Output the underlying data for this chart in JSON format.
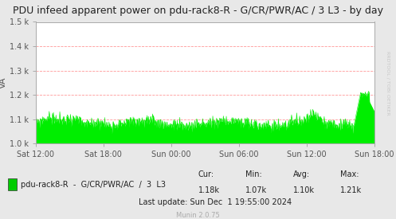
{
  "title": "PDU infeed apparent power on pdu-rack8-R - G/CR/PWR/AC / 3 L3 - by day",
  "ylabel": "VA",
  "ylim": [
    1000,
    1500
  ],
  "ytick_labels": [
    "1.0 k",
    "1.1 k",
    "1.2 k",
    "1.3 k",
    "1.4 k",
    "1.5 k"
  ],
  "ytick_vals": [
    1000,
    1100,
    1200,
    1300,
    1400,
    1500
  ],
  "xtick_labels": [
    "Sat 12:00",
    "Sat 18:00",
    "Sun 00:00",
    "Sun 06:00",
    "Sun 12:00",
    "Sun 18:00"
  ],
  "xtick_pos": [
    0.0,
    0.2,
    0.4,
    0.6,
    0.8,
    1.0
  ],
  "line_color": "#00ee00",
  "fill_color": "#00ee00",
  "background_color": "#e8e8e8",
  "plot_bg_color": "#ffffff",
  "grid_color": "#ff9999",
  "legend_label": "pdu-rack8-R  -  G/CR/PWR/AC  /  3  L3",
  "legend_color": "#00cc00",
  "cur": "1.18k",
  "min": "1.07k",
  "avg": "1.10k",
  "max": "1.21k",
  "last_update": "Last update: Sun Dec  1 19:55:00 2024",
  "munin_version": "Munin 2.0.75",
  "title_fontsize": 9,
  "axis_fontsize": 7,
  "tick_fontsize": 7,
  "legend_fontsize": 7,
  "stats_fontsize": 7,
  "watermark": "RRDTOOL / TOBI OETIKER",
  "baseline_value": 1082,
  "noise_std": 12,
  "spike_value": 1210,
  "num_points": 800
}
